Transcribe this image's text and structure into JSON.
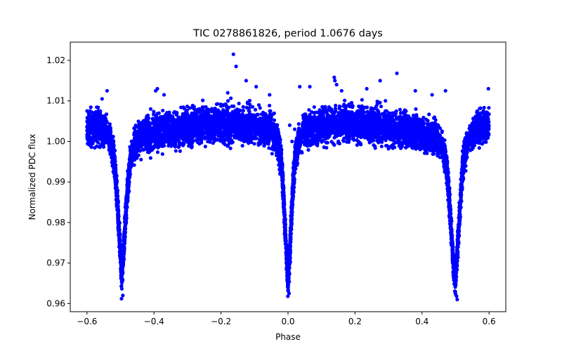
{
  "chart_data": {
    "type": "scatter",
    "title": "TIC 0278861826, period 1.0676 days",
    "xlabel": "Phase",
    "ylabel": "Normalized PDC flux",
    "xlim": [
      -0.65,
      0.65
    ],
    "ylim": [
      0.958,
      1.0245
    ],
    "x_ticks": [
      -0.6,
      -0.4,
      -0.2,
      0.0,
      0.2,
      0.4,
      0.6
    ],
    "x_tick_labels": [
      "−0.6",
      "−0.4",
      "−0.2",
      "0.0",
      "0.2",
      "0.4",
      "0.6"
    ],
    "y_ticks": [
      0.96,
      0.97,
      0.98,
      0.99,
      1.0,
      1.01,
      1.02
    ],
    "y_tick_labels": [
      "0.96",
      "0.97",
      "0.98",
      "0.99",
      "1.00",
      "1.01",
      "1.02"
    ],
    "grid": false,
    "legend": "none",
    "point_color": "#0000ff",
    "series": [
      {
        "profile": [
          [
            -0.6,
            1.0038
          ],
          [
            -0.58,
            1.0035
          ],
          [
            -0.56,
            1.003
          ],
          [
            -0.54,
            1.002
          ],
          [
            -0.53,
            1.0
          ],
          [
            -0.52,
            0.996
          ],
          [
            -0.515,
            0.992
          ],
          [
            -0.51,
            0.986
          ],
          [
            -0.505,
            0.979
          ],
          [
            -0.5,
            0.972
          ],
          [
            -0.497,
            0.9665
          ],
          [
            -0.495,
            0.968
          ],
          [
            -0.49,
            0.974
          ],
          [
            -0.485,
            0.981
          ],
          [
            -0.48,
            0.987
          ],
          [
            -0.475,
            0.992
          ],
          [
            -0.47,
            0.9955
          ],
          [
            -0.46,
            0.999
          ],
          [
            -0.44,
            1.001
          ],
          [
            -0.4,
            1.002
          ],
          [
            -0.3,
            1.0035
          ],
          [
            -0.2,
            1.0045
          ],
          [
            -0.1,
            1.004
          ],
          [
            -0.05,
            1.003
          ],
          [
            -0.03,
            1.0
          ],
          [
            -0.02,
            0.995
          ],
          [
            -0.015,
            0.989
          ],
          [
            -0.01,
            0.981
          ],
          [
            -0.005,
            0.972
          ],
          [
            0.0,
            0.965
          ],
          [
            0.005,
            0.972
          ],
          [
            0.01,
            0.981
          ],
          [
            0.015,
            0.989
          ],
          [
            0.02,
            0.995
          ],
          [
            0.03,
            1.0
          ],
          [
            0.05,
            1.003
          ],
          [
            0.1,
            1.004
          ],
          [
            0.2,
            1.0045
          ],
          [
            0.3,
            1.0035
          ],
          [
            0.4,
            1.002
          ],
          [
            0.44,
            1.001
          ],
          [
            0.46,
            0.999
          ],
          [
            0.47,
            0.9955
          ],
          [
            0.475,
            0.992
          ],
          [
            0.48,
            0.987
          ],
          [
            0.485,
            0.981
          ],
          [
            0.49,
            0.974
          ],
          [
            0.495,
            0.968
          ],
          [
            0.5,
            0.9665
          ],
          [
            0.505,
            0.972
          ],
          [
            0.51,
            0.979
          ],
          [
            0.515,
            0.986
          ],
          [
            0.52,
            0.992
          ],
          [
            0.525,
            0.996
          ],
          [
            0.535,
            1.0
          ],
          [
            0.56,
            1.003
          ],
          [
            0.58,
            1.0035
          ],
          [
            0.6,
            1.0038
          ]
        ],
        "scatter_amplitude": 0.0042,
        "outliers": [
          [
            -0.163,
            1.0215
          ],
          [
            -0.155,
            1.0185
          ],
          [
            -0.125,
            1.015
          ],
          [
            -0.095,
            1.0135
          ],
          [
            -0.18,
            1.012
          ],
          [
            -0.39,
            1.013
          ],
          [
            -0.395,
            1.0125
          ],
          [
            -0.37,
            1.0115
          ],
          [
            -0.54,
            1.0125
          ],
          [
            -0.555,
            1.0105
          ],
          [
            -0.41,
            1.008
          ],
          [
            0.035,
            1.0135
          ],
          [
            0.065,
            1.0135
          ],
          [
            0.138,
            1.0158
          ],
          [
            0.14,
            1.015
          ],
          [
            0.145,
            1.014
          ],
          [
            0.16,
            1.0125
          ],
          [
            0.235,
            1.013
          ],
          [
            0.275,
            1.015
          ],
          [
            0.325,
            1.0168
          ],
          [
            0.38,
            1.0125
          ],
          [
            0.43,
            1.0115
          ],
          [
            0.47,
            1.0125
          ],
          [
            0.598,
            1.013
          ],
          [
            0.005,
            1.004
          ],
          [
            0.02,
            1.003
          ],
          [
            -0.055,
            1.0115
          ],
          [
            0.012,
            1.0
          ]
        ],
        "low_outliers": [
          [
            -0.497,
            0.9612
          ],
          [
            -0.493,
            0.962
          ],
          [
            0.505,
            0.961
          ],
          [
            0.503,
            0.9618
          ],
          [
            0.003,
            0.9625
          ]
        ]
      }
    ]
  }
}
